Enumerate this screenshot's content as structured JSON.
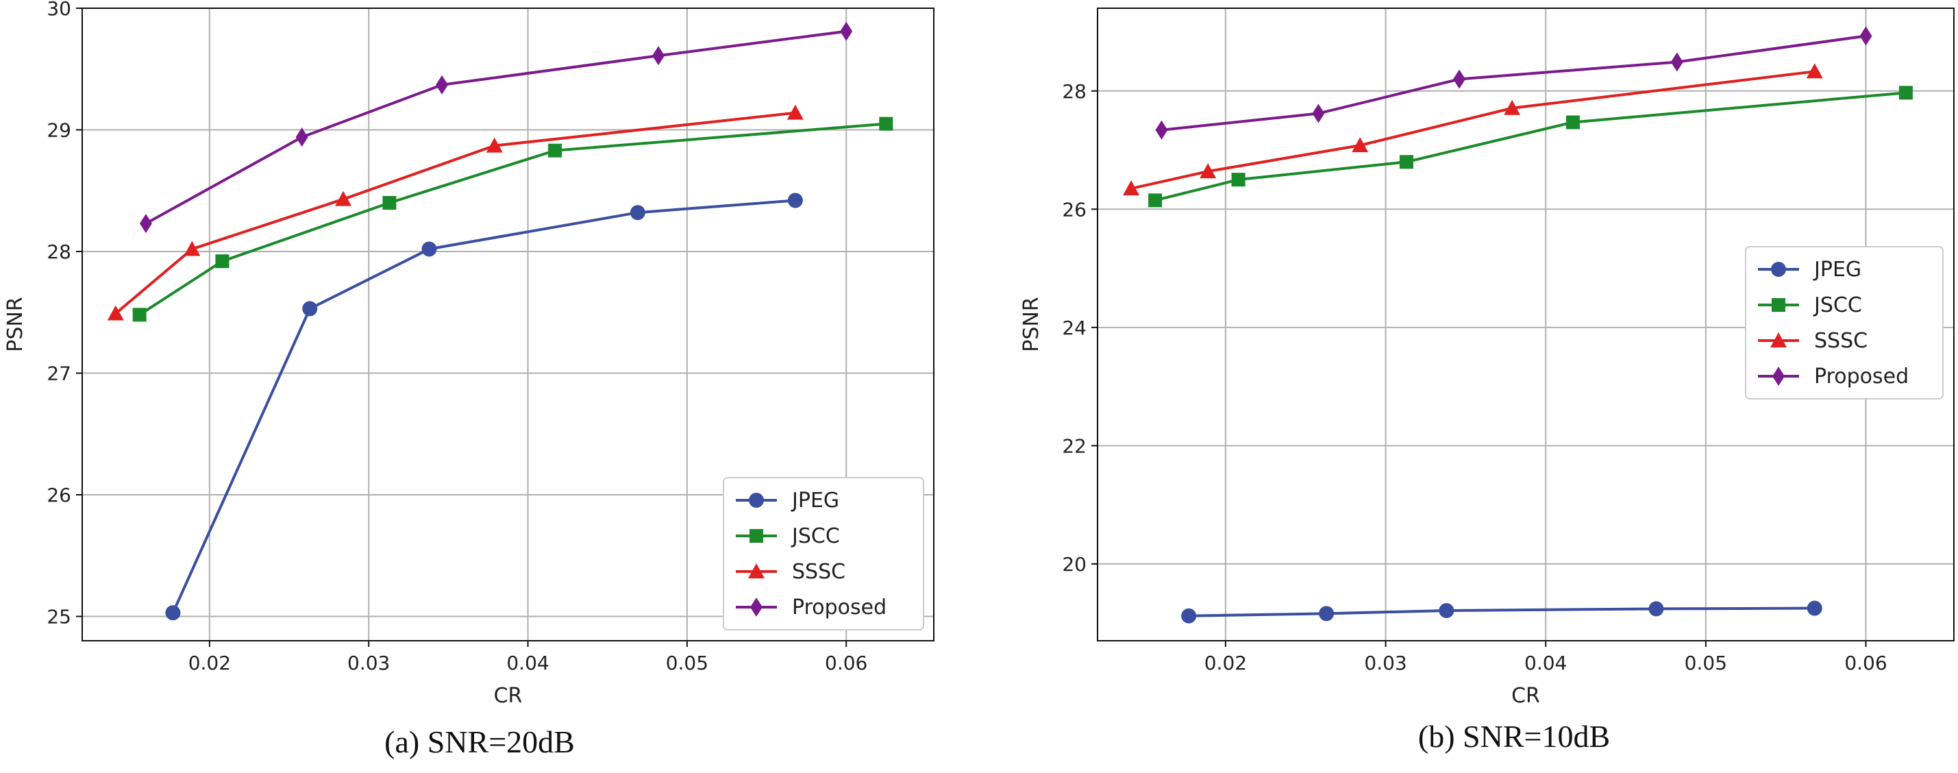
{
  "chart_data": [
    {
      "type": "line",
      "caption": "(a)  SNR=20dB",
      "xlabel": "CR",
      "ylabel": "PSNR",
      "xlim": [
        0.012,
        0.0655
      ],
      "ylim": [
        24.8,
        30.0
      ],
      "xticks": [
        0.02,
        0.03,
        0.04,
        0.05,
        0.06
      ],
      "xtick_labels": [
        "0.02",
        "0.03",
        "0.04",
        "0.05",
        "0.06"
      ],
      "yticks": [
        25,
        26,
        27,
        28,
        29,
        30
      ],
      "ytick_labels": [
        "25",
        "26",
        "27",
        "28",
        "29",
        "30"
      ],
      "grid": true,
      "legend_position": "lower-right",
      "series": [
        {
          "name": "JPEG",
          "color": "#3a4fa0",
          "marker": "circle",
          "x": [
            0.0177,
            0.0263,
            0.0338,
            0.0469,
            0.0568
          ],
          "y": [
            25.03,
            27.53,
            28.02,
            28.32,
            28.42
          ]
        },
        {
          "name": "JSCC",
          "color": "#1a8a2a",
          "marker": "square",
          "x": [
            0.0156,
            0.0208,
            0.0313,
            0.0417,
            0.0625
          ],
          "y": [
            27.48,
            27.92,
            28.4,
            28.83,
            29.05
          ]
        },
        {
          "name": "SSSC",
          "color": "#e02020",
          "marker": "triangle",
          "x": [
            0.0141,
            0.0189,
            0.0284,
            0.0379,
            0.0568
          ],
          "y": [
            27.49,
            28.02,
            28.43,
            28.87,
            29.14
          ]
        },
        {
          "name": "Proposed",
          "color": "#7b1a8c",
          "marker": "diamond",
          "x": [
            0.016,
            0.0258,
            0.0346,
            0.0482,
            0.06
          ],
          "y": [
            28.23,
            28.94,
            29.37,
            29.61,
            29.81
          ]
        }
      ]
    },
    {
      "type": "line",
      "caption": "(b)  SNR=10dB",
      "xlabel": "CR",
      "ylabel": "PSNR",
      "xlim": [
        0.012,
        0.0655
      ],
      "ylim": [
        18.7,
        29.4
      ],
      "xticks": [
        0.02,
        0.03,
        0.04,
        0.05,
        0.06
      ],
      "xtick_labels": [
        "0.02",
        "0.03",
        "0.04",
        "0.05",
        "0.06"
      ],
      "yticks": [
        20,
        22,
        24,
        26,
        28
      ],
      "ytick_labels": [
        "20",
        "22",
        "24",
        "26",
        "28"
      ],
      "grid": true,
      "legend_position": "center-right",
      "series": [
        {
          "name": "JPEG",
          "color": "#3a4fa0",
          "marker": "circle",
          "x": [
            0.0177,
            0.0263,
            0.0338,
            0.0469,
            0.0568
          ],
          "y": [
            19.12,
            19.16,
            19.21,
            19.24,
            19.25
          ]
        },
        {
          "name": "JSCC",
          "color": "#1a8a2a",
          "marker": "square",
          "x": [
            0.0156,
            0.0208,
            0.0313,
            0.0417,
            0.0625
          ],
          "y": [
            26.15,
            26.5,
            26.8,
            27.47,
            27.97
          ]
        },
        {
          "name": "SSSC",
          "color": "#e02020",
          "marker": "triangle",
          "x": [
            0.0141,
            0.0189,
            0.0284,
            0.0379,
            0.0568
          ],
          "y": [
            26.35,
            26.64,
            27.08,
            27.71,
            28.33
          ]
        },
        {
          "name": "Proposed",
          "color": "#7b1a8c",
          "marker": "diamond",
          "x": [
            0.016,
            0.0258,
            0.0346,
            0.0482,
            0.06
          ],
          "y": [
            27.34,
            27.62,
            28.2,
            28.49,
            28.93
          ]
        }
      ]
    }
  ]
}
